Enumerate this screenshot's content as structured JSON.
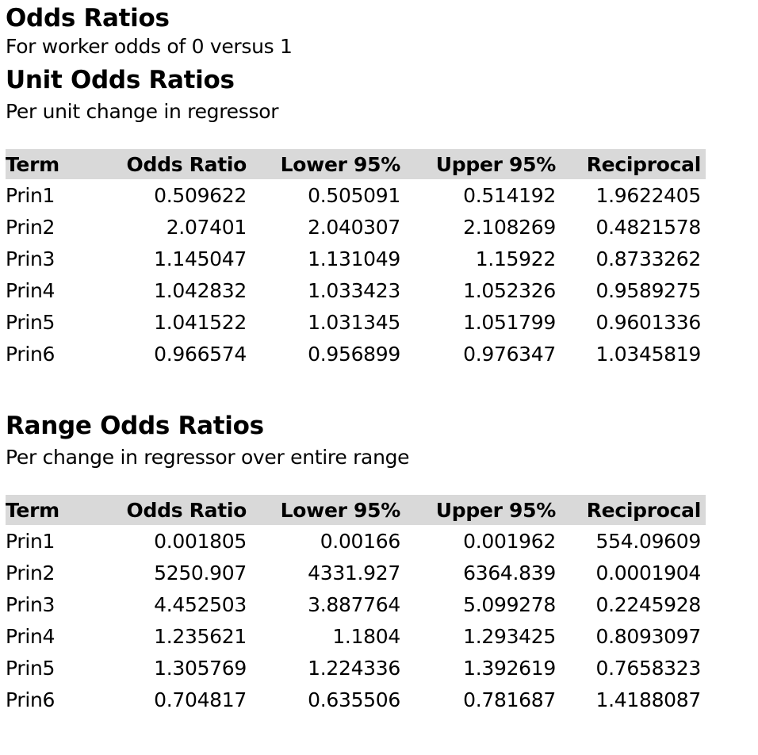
{
  "report": {
    "title": "Odds Ratios",
    "subtitle": "For worker odds of 0 versus 1"
  },
  "unit_odds": {
    "title": "Unit Odds Ratios",
    "description": "Per unit change in regressor",
    "columns": [
      "Term",
      "Odds Ratio",
      "Lower 95%",
      "Upper 95%",
      "Reciprocal"
    ],
    "rows": [
      [
        "Prin1",
        "0.509622",
        "0.505091",
        "0.514192",
        "1.9622405"
      ],
      [
        "Prin2",
        "2.07401",
        "2.040307",
        "2.108269",
        "0.4821578"
      ],
      [
        "Prin3",
        "1.145047",
        "1.131049",
        "1.15922",
        "0.8733262"
      ],
      [
        "Prin4",
        "1.042832",
        "1.033423",
        "1.052326",
        "0.9589275"
      ],
      [
        "Prin5",
        "1.041522",
        "1.031345",
        "1.051799",
        "0.9601336"
      ],
      [
        "Prin6",
        "0.966574",
        "0.956899",
        "0.976347",
        "1.0345819"
      ]
    ]
  },
  "range_odds": {
    "title": "Range Odds Ratios",
    "description": "Per change in regressor over entire range",
    "columns": [
      "Term",
      "Odds Ratio",
      "Lower 95%",
      "Upper 95%",
      "Reciprocal"
    ],
    "rows": [
      [
        "Prin1",
        "0.001805",
        "0.00166",
        "0.001962",
        "554.09609"
      ],
      [
        "Prin2",
        "5250.907",
        "4331.927",
        "6364.839",
        "0.0001904"
      ],
      [
        "Prin3",
        "4.452503",
        "3.887764",
        "5.099278",
        "0.2245928"
      ],
      [
        "Prin4",
        "1.235621",
        "1.1804",
        "1.293425",
        "0.8093097"
      ],
      [
        "Prin5",
        "1.305769",
        "1.224336",
        "1.392619",
        "0.7658323"
      ],
      [
        "Prin6",
        "0.704817",
        "0.635506",
        "0.781687",
        "1.4188087"
      ]
    ]
  },
  "colors": {
    "header_background": "#d9d9d9",
    "text": "#000000",
    "background": "#ffffff"
  }
}
